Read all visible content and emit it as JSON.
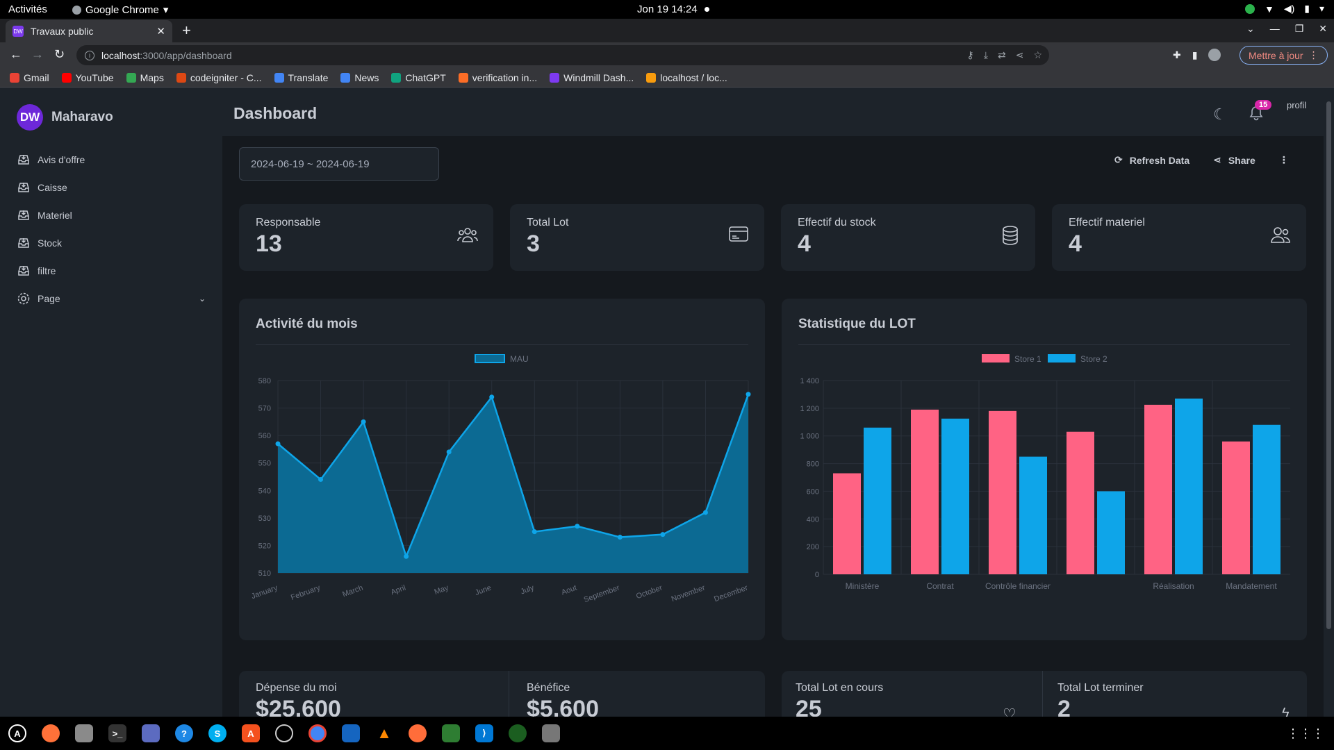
{
  "os": {
    "activities": "Activités",
    "app_name": "Google Chrome",
    "clock": "Jon 19  14:24"
  },
  "browser": {
    "tab_title": "Travaux public",
    "tab_favicon": "DW",
    "url_host": "localhost",
    "url_path": ":3000/app/dashboard",
    "update_button": "Mettre à jour",
    "bookmarks": [
      {
        "label": "Gmail",
        "color": "#ea4335"
      },
      {
        "label": "YouTube",
        "color": "#ff0000"
      },
      {
        "label": "Maps",
        "color": "#34a853"
      },
      {
        "label": "codeigniter - C...",
        "color": "#dd4814"
      },
      {
        "label": "Translate",
        "color": "#4285f4"
      },
      {
        "label": "News",
        "color": "#4285f4"
      },
      {
        "label": "ChatGPT",
        "color": "#10a37f"
      },
      {
        "label": "verification in...",
        "color": "#fc6d26"
      },
      {
        "label": "Windmill Dash...",
        "color": "#7e3af2"
      },
      {
        "label": "localhost / loc...",
        "color": "#f89c0e"
      }
    ]
  },
  "app": {
    "brand_logo": "DW",
    "brand_name": "Maharavo",
    "menu": [
      {
        "label": "Avis d'offre",
        "icon": "inbox-icon"
      },
      {
        "label": "Caisse",
        "icon": "inbox-icon"
      },
      {
        "label": "Materiel",
        "icon": "inbox-icon"
      },
      {
        "label": "Stock",
        "icon": "inbox-icon"
      },
      {
        "label": "filtre",
        "icon": "inbox-icon"
      },
      {
        "label": "Page",
        "icon": "gear-icon"
      }
    ],
    "page_title": "Dashboard",
    "notification_count": "15",
    "avatar_alt": "profil",
    "date_range": "2024-06-19 ~ 2024-06-19",
    "refresh_label": "Refresh Data",
    "share_label": "Share",
    "stats": [
      {
        "label": "Responsable",
        "value": "13",
        "icon": "users-group-icon"
      },
      {
        "label": "Total Lot",
        "value": "3",
        "icon": "credit-card-icon"
      },
      {
        "label": "Effectif du stock",
        "value": "4",
        "icon": "database-icon"
      },
      {
        "label": "Effectif materiel",
        "value": "4",
        "icon": "users-icon"
      }
    ],
    "bottom_stats": [
      {
        "label": "Dépense du moi",
        "value": "$25,600"
      },
      {
        "label": "Bénéfice",
        "value": "$5,600"
      },
      {
        "label": "Total Lot en cours",
        "value": "25"
      },
      {
        "label": "Total Lot terminer",
        "value": "2"
      }
    ]
  },
  "chart_data": [
    {
      "type": "area",
      "title": "Activité du mois",
      "categories": [
        "January",
        "February",
        "March",
        "April",
        "May",
        "June",
        "July",
        "Aout",
        "September",
        "October",
        "November",
        "December"
      ],
      "series": [
        {
          "name": "MAU",
          "values": [
            557,
            544,
            565,
            516,
            554,
            574,
            525,
            527,
            523,
            524,
            532,
            575
          ]
        }
      ],
      "ylim": [
        510,
        580
      ],
      "yticks": [
        510,
        520,
        530,
        540,
        550,
        560,
        570,
        580
      ],
      "legend": "top-center",
      "grid": true,
      "colors": {
        "line": "#0ea5e9",
        "fill": "#0c6a93"
      }
    },
    {
      "type": "bar",
      "title": "Statistique du LOT",
      "categories": [
        "Ministère",
        "Contrat",
        "Contrôle financier",
        "",
        "Réalisation",
        "Mandatement"
      ],
      "series": [
        {
          "name": "Store 1",
          "values": [
            730,
            1190,
            1180,
            1030,
            1225,
            960
          ],
          "color": "#ff6384"
        },
        {
          "name": "Store 2",
          "values": [
            1060,
            1125,
            850,
            600,
            1270,
            1080
          ],
          "color": "#0ea5e9"
        }
      ],
      "ylim": [
        0,
        1400
      ],
      "yticks": [
        "0",
        "200",
        "400",
        "600",
        "800",
        "1 000",
        "1 200",
        "1 400"
      ],
      "legend": "top-center",
      "grid": true
    }
  ]
}
